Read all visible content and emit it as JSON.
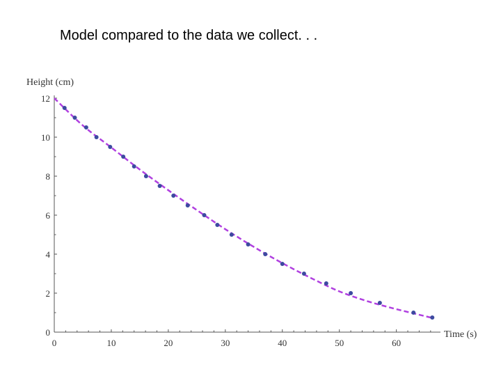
{
  "slide": {
    "title": "Model compared to the data we collect. . ."
  },
  "colors": {
    "model_line": "#b040e0",
    "data_points": "#3d4aa0",
    "axis": "#555555"
  },
  "chart_data": {
    "type": "scatter",
    "xlabel": "Time (s)",
    "ylabel": "Height (cm)",
    "xlim": [
      0,
      67
    ],
    "ylim": [
      0,
      12
    ],
    "x_ticks": [
      0,
      10,
      20,
      30,
      40,
      50,
      60
    ],
    "y_ticks": [
      0,
      2,
      4,
      6,
      8,
      10,
      12
    ],
    "grid": false,
    "series": [
      {
        "kind": "points",
        "x": [
          1.8,
          3.6,
          5.6,
          7.4,
          9.8,
          12.1,
          14.0,
          16.1,
          18.5,
          20.9,
          23.4,
          26.3,
          28.6,
          31.1,
          34.0,
          37.0,
          40.0,
          43.8,
          47.7,
          52.0,
          57.1,
          63.0,
          66.3
        ],
        "y": [
          11.5,
          11.0,
          10.5,
          10.0,
          9.5,
          9.0,
          8.5,
          8.0,
          7.5,
          7.0,
          6.5,
          6.0,
          5.5,
          5.0,
          4.5,
          4.0,
          3.5,
          3.0,
          2.5,
          2.0,
          1.5,
          1.0,
          0.75
        ]
      },
      {
        "kind": "model-curve",
        "x": [
          0,
          5,
          10,
          15,
          20,
          25,
          30,
          35,
          40,
          45,
          50,
          55,
          60,
          66
        ],
        "y": [
          12.0,
          10.6,
          9.47,
          8.34,
          7.28,
          6.26,
          5.28,
          4.37,
          3.54,
          2.78,
          2.09,
          1.58,
          1.18,
          0.75
        ]
      }
    ]
  }
}
